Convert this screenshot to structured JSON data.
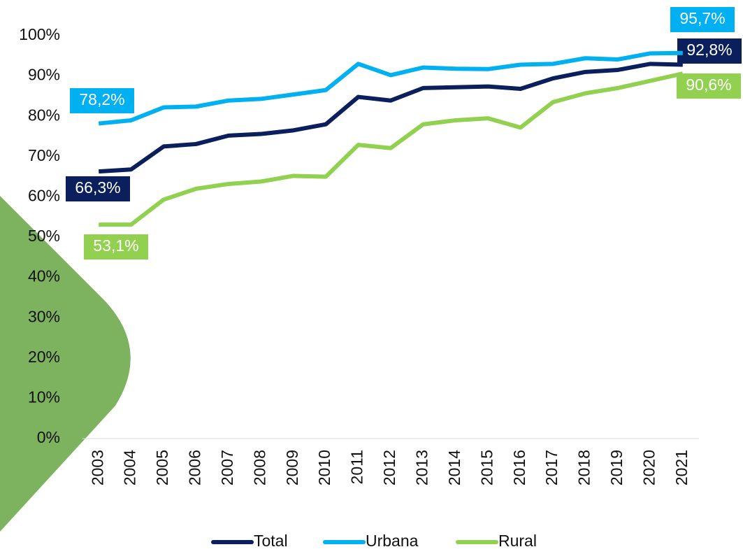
{
  "chart_data": {
    "type": "line",
    "categories": [
      "2003",
      "2004",
      "2005",
      "2006",
      "2007",
      "2008",
      "2009",
      "2010",
      "2011",
      "2012",
      "2013",
      "2014",
      "2015",
      "2016",
      "2017",
      "2018",
      "2019",
      "2020",
      "2021"
    ],
    "series": [
      {
        "name": "Total",
        "color": "#0b1f5c",
        "values": [
          66.3,
          66.8,
          72.5,
          73.1,
          75.2,
          75.6,
          76.5,
          78.0,
          84.8,
          83.9,
          87.0,
          87.2,
          87.4,
          86.8,
          89.4,
          91.0,
          91.5,
          93.0,
          92.8
        ],
        "value_labels": [
          "66,3%",
          null,
          null,
          null,
          null,
          null,
          null,
          null,
          null,
          null,
          null,
          null,
          null,
          null,
          null,
          null,
          null,
          null,
          "92,8%"
        ]
      },
      {
        "name": "Urbana",
        "color": "#00b0f0",
        "values": [
          78.2,
          79.0,
          82.2,
          82.4,
          83.9,
          84.3,
          85.4,
          86.5,
          93.0,
          90.2,
          92.1,
          91.8,
          91.7,
          92.8,
          93.0,
          94.4,
          94.1,
          95.6,
          95.7
        ],
        "value_labels": [
          "78,2%",
          null,
          null,
          null,
          null,
          null,
          null,
          null,
          null,
          null,
          null,
          null,
          null,
          null,
          null,
          null,
          null,
          null,
          "95,7%"
        ]
      },
      {
        "name": "Rural",
        "color": "#92d050",
        "values": [
          53.1,
          53.1,
          59.3,
          62.0,
          63.2,
          63.8,
          65.2,
          65.0,
          72.9,
          72.1,
          78.0,
          79.0,
          79.5,
          77.2,
          83.5,
          85.7,
          87.0,
          88.8,
          90.6
        ],
        "value_labels": [
          "53,1%",
          null,
          null,
          null,
          null,
          null,
          null,
          null,
          null,
          null,
          null,
          null,
          null,
          null,
          null,
          null,
          null,
          null,
          "90,6%"
        ]
      }
    ],
    "ylim": [
      0,
      100
    ],
    "yticks": [
      {
        "value": 0,
        "label": "0%"
      },
      {
        "value": 10,
        "label": "10%"
      },
      {
        "value": 20,
        "label": "20%"
      },
      {
        "value": 30,
        "label": "30%"
      },
      {
        "value": 40,
        "label": "40%"
      },
      {
        "value": 50,
        "label": "50%"
      },
      {
        "value": 60,
        "label": "60%"
      },
      {
        "value": 70,
        "label": "70%"
      },
      {
        "value": 80,
        "label": "80%"
      },
      {
        "value": 90,
        "label": "90%"
      },
      {
        "value": 100,
        "label": "100%"
      }
    ],
    "legend": "bottom"
  }
}
